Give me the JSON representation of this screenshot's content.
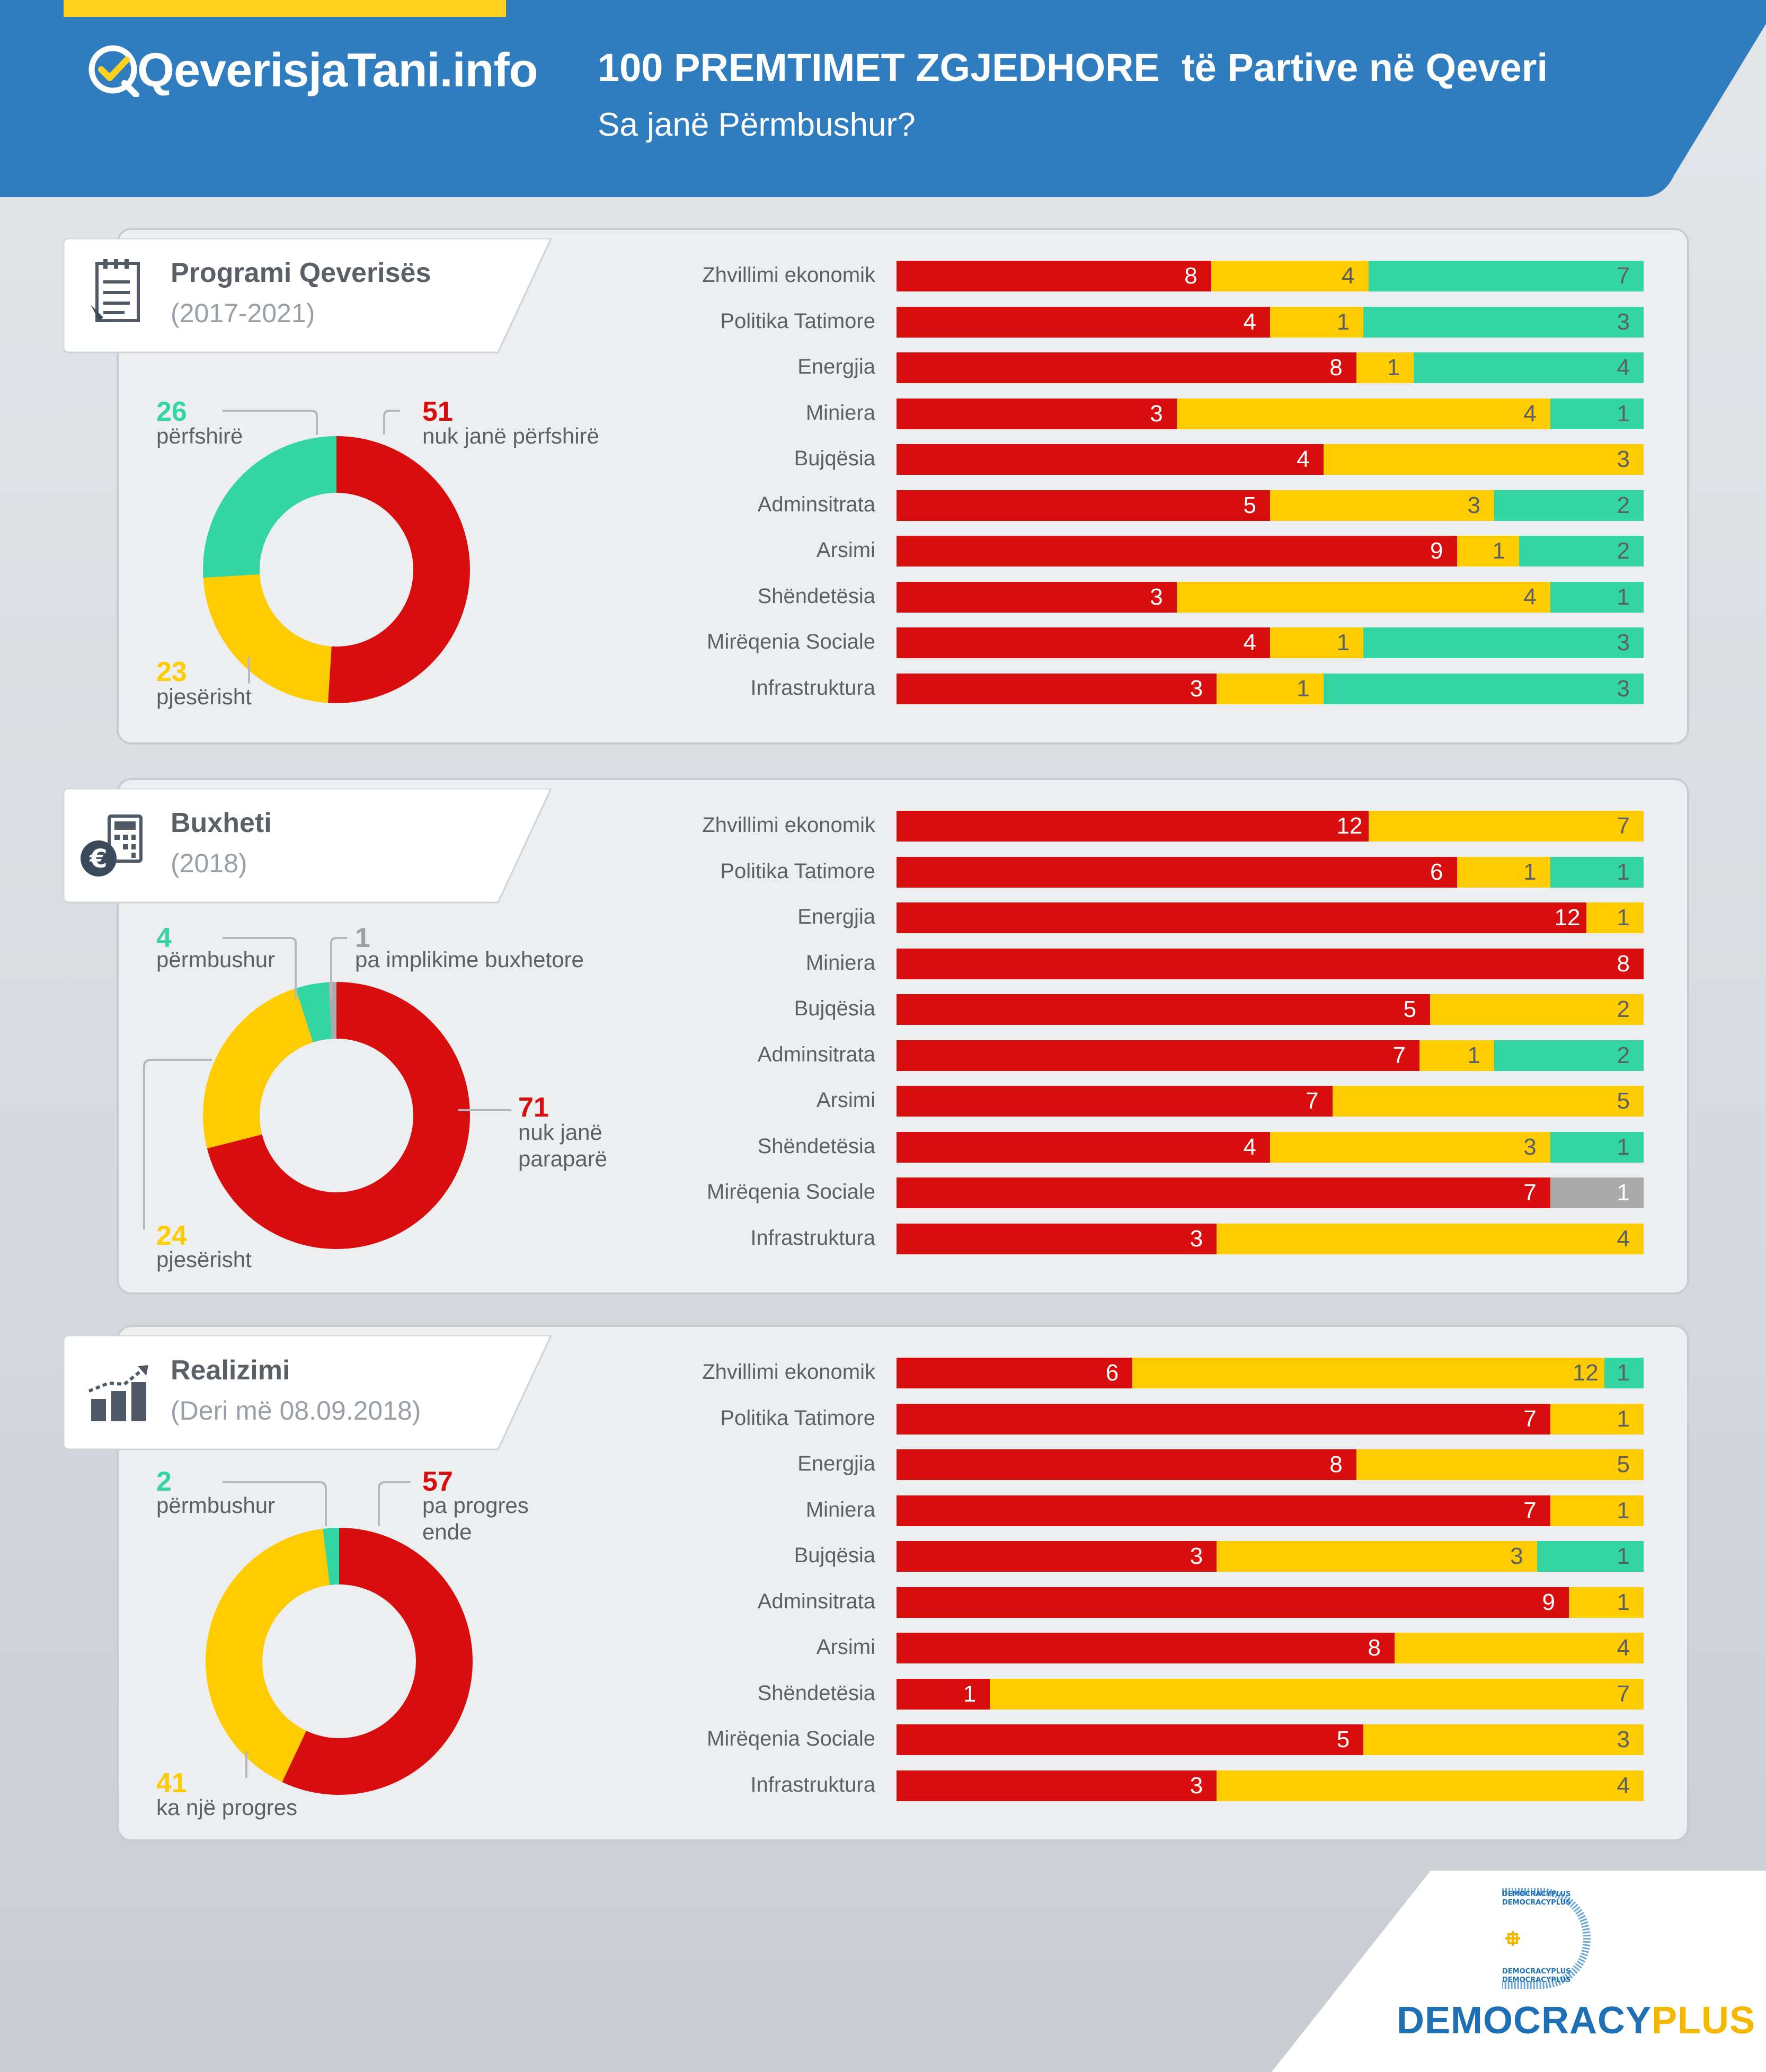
{
  "header": {
    "logo": "QeverisjaTani.info",
    "title": "100 PREMTIMET ZGJEDHORE  të Partive në Qeveri",
    "subtitle": "Sa janë Përmbushur?"
  },
  "colors": {
    "red": "#d80d0d",
    "yellow": "#ffcc00",
    "green": "#33d6a0",
    "gray": "#aaaaaa",
    "header_blue": "#2f7dbf",
    "accent_yellow": "#ffd21f",
    "text_gray": "#5b6066",
    "brand_blue": "#1f6fb5",
    "brand_yellow": "#f5b800"
  },
  "chart_data": [
    {
      "type": "donut",
      "title": "Programi Qeverisës",
      "subtitle": "(2017-2021)",
      "icon": "document-checklist-icon",
      "slices": [
        {
          "value": 51,
          "label": "nuk janë përfshirë",
          "color": "red"
        },
        {
          "value": 23,
          "label": "pjesërisht",
          "color": "yellow"
        },
        {
          "value": 26,
          "label": "përfshirë",
          "color": "green"
        }
      ]
    },
    {
      "type": "bar",
      "stacked": true,
      "orientation": "horizontal",
      "categories": [
        "Zhvillimi ekonomik",
        "Politika Tatimore",
        "Energjia",
        "Miniera",
        "Bujqësia",
        "Adminsitrata",
        "Arsimi",
        "Shëndetësia",
        "Mirëqenia Sociale",
        "Infrastruktura"
      ],
      "series": [
        {
          "color": "red",
          "values": [
            8,
            4,
            8,
            3,
            4,
            5,
            9,
            3,
            4,
            3
          ]
        },
        {
          "color": "yellow",
          "values": [
            4,
            1,
            1,
            4,
            3,
            3,
            1,
            4,
            1,
            1
          ]
        },
        {
          "color": "green",
          "values": [
            7,
            3,
            4,
            1,
            0,
            2,
            2,
            1,
            3,
            3
          ]
        }
      ]
    },
    {
      "type": "donut",
      "title": "Buxheti",
      "subtitle": "(2018)",
      "icon": "calculator-euro-icon",
      "slices": [
        {
          "value": 71,
          "label": "nuk janë paraparë",
          "color": "red"
        },
        {
          "value": 24,
          "label": "pjesërisht",
          "color": "yellow"
        },
        {
          "value": 4,
          "label": "përmbushur",
          "color": "green"
        },
        {
          "value": 1,
          "label": "pa implikime buxhetore",
          "color": "gray"
        }
      ]
    },
    {
      "type": "bar",
      "stacked": true,
      "orientation": "horizontal",
      "categories": [
        "Zhvillimi ekonomik",
        "Politika Tatimore",
        "Energjia",
        "Miniera",
        "Bujqësia",
        "Adminsitrata",
        "Arsimi",
        "Shëndetësia",
        "Mirëqenia Sociale",
        "Infrastruktura"
      ],
      "series": [
        {
          "color": "red",
          "values": [
            12,
            6,
            12,
            8,
            5,
            7,
            7,
            4,
            7,
            3
          ]
        },
        {
          "color": "yellow",
          "values": [
            7,
            1,
            1,
            0,
            2,
            1,
            5,
            3,
            0,
            4
          ]
        },
        {
          "color": "green",
          "values": [
            0,
            1,
            0,
            0,
            0,
            2,
            0,
            1,
            0,
            0
          ]
        },
        {
          "color": "gray",
          "values": [
            0,
            0,
            0,
            0,
            0,
            0,
            0,
            0,
            1,
            0
          ]
        }
      ]
    },
    {
      "type": "donut",
      "title": "Realizimi",
      "subtitle": "(Deri më 08.09.2018)",
      "icon": "growth-chart-icon",
      "slices": [
        {
          "value": 57,
          "label": "pa progres ende",
          "color": "red"
        },
        {
          "value": 41,
          "label": "ka një progres",
          "color": "yellow"
        },
        {
          "value": 2,
          "label": "përmbushur",
          "color": "green"
        }
      ]
    },
    {
      "type": "bar",
      "stacked": true,
      "orientation": "horizontal",
      "categories": [
        "Zhvillimi ekonomik",
        "Politika Tatimore",
        "Energjia",
        "Miniera",
        "Bujqësia",
        "Adminsitrata",
        "Arsimi",
        "Shëndetësia",
        "Mirëqenia Sociale",
        "Infrastruktura"
      ],
      "series": [
        {
          "color": "red",
          "values": [
            6,
            7,
            8,
            7,
            3,
            9,
            8,
            1,
            5,
            3
          ]
        },
        {
          "color": "yellow",
          "values": [
            12,
            1,
            5,
            1,
            3,
            1,
            4,
            7,
            3,
            4
          ]
        },
        {
          "color": "green",
          "values": [
            1,
            0,
            0,
            0,
            1,
            0,
            0,
            0,
            0,
            0
          ]
        }
      ]
    }
  ],
  "footer": {
    "brand_part1": "DEMOCRACY",
    "brand_part2": "PLUS",
    "logo_text": "DEMOCRACYPLUS"
  }
}
